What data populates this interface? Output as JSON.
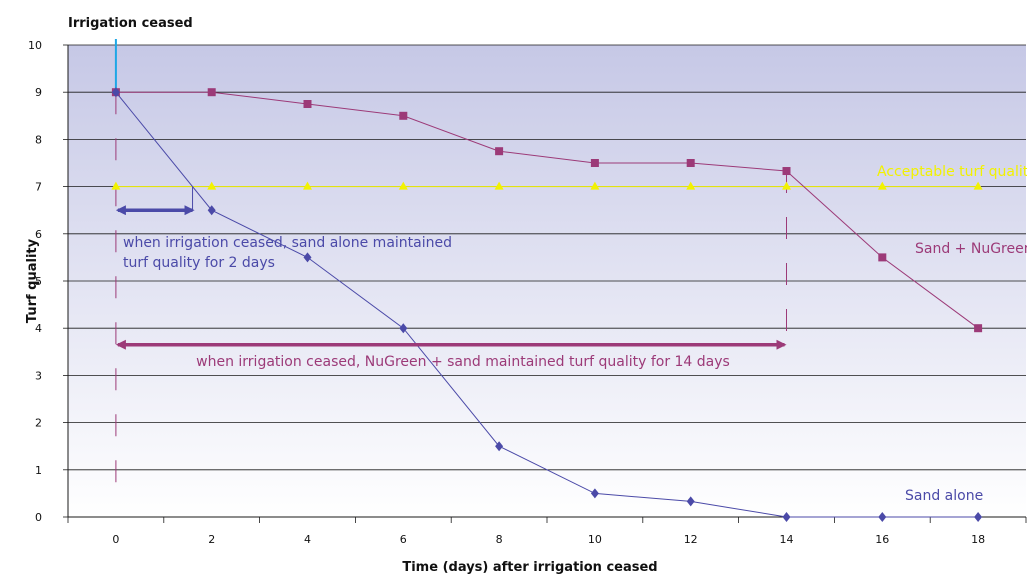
{
  "chart_data": {
    "type": "line",
    "annotation_top": "Irrigation ceased",
    "xlabel": "Time (days) after irrigation ceased",
    "ylabel": "Turf quality",
    "xlim": [
      -1,
      19
    ],
    "ylim": [
      0,
      10
    ],
    "x_ticks": [
      0,
      2,
      4,
      6,
      8,
      10,
      12,
      14,
      16,
      18
    ],
    "y_ticks": [
      0,
      1,
      2,
      3,
      4,
      5,
      6,
      7,
      8,
      9,
      10
    ],
    "grid": "horizontal",
    "series": [
      {
        "name": "Acceptable turf quality",
        "color": "#f2f200",
        "marker": "triangle",
        "x": [
          0,
          2,
          4,
          6,
          8,
          10,
          12,
          14,
          16,
          18
        ],
        "values": [
          7,
          7,
          7,
          7,
          7,
          7,
          7,
          7,
          7,
          7
        ]
      },
      {
        "name": "Sand + NuGreen",
        "color": "#9c3a78",
        "marker": "square",
        "x": [
          0,
          2,
          4,
          6,
          8,
          10,
          12,
          14,
          16,
          18
        ],
        "values": [
          9,
          9,
          8.75,
          8.5,
          7.75,
          7.5,
          7.5,
          7.33,
          5.5,
          4
        ]
      },
      {
        "name": "Sand alone",
        "color": "#4b4aa8",
        "marker": "diamond",
        "x": [
          0,
          2,
          4,
          6,
          8,
          10,
          12,
          14,
          16,
          18
        ],
        "values": [
          9,
          6.5,
          5.5,
          4,
          1.5,
          0.5,
          0.33,
          0,
          0,
          0
        ]
      }
    ],
    "annotations": [
      "when irrigation ceased, sand alone maintained",
      "turf quality for 2 days",
      "when irrigation ceased, NuGreen + sand maintained turf quality for 14 days"
    ],
    "colors": {
      "sand_alone": "#4b4aa8",
      "nugreen": "#9c3a78",
      "acceptable": "#f2f200",
      "irrigation_marker": "#1ea7e6",
      "bg_top": "#c6c8e6",
      "bg_bottom": "#ffffff"
    }
  }
}
